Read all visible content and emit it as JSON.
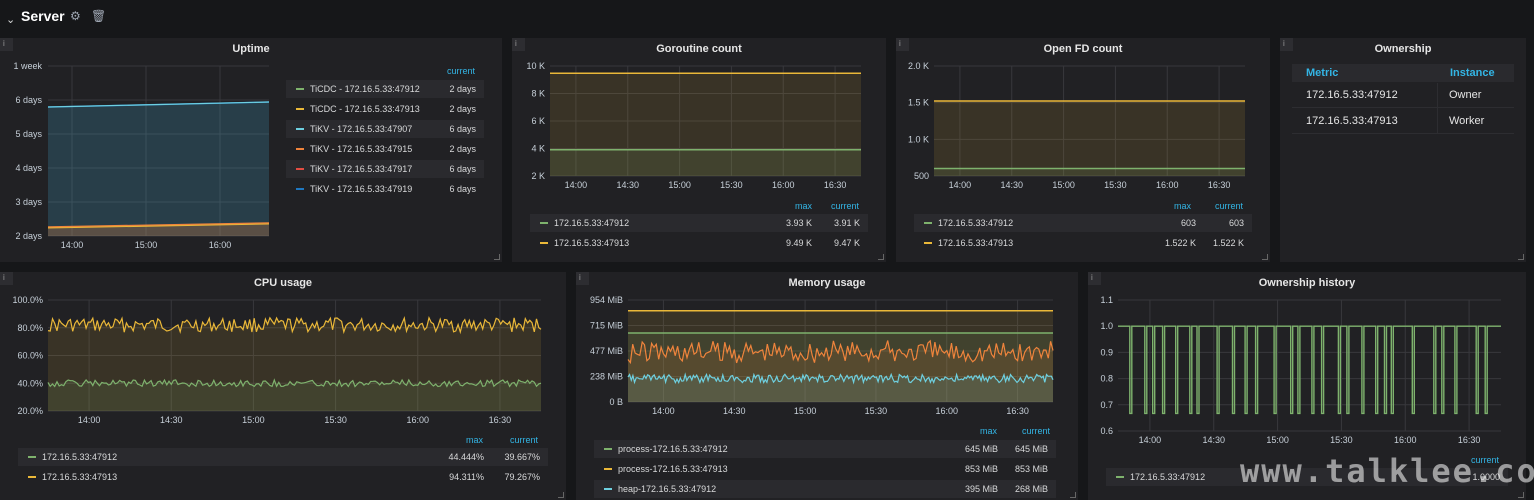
{
  "row": {
    "title": "Server"
  },
  "colors": {
    "green": "#7eb26d",
    "yellow": "#eab839",
    "blue": "#6ed0e0",
    "orange": "#ef843c",
    "red": "#e24d42",
    "darkblue": "#1f78c1",
    "link": "#33b5e5",
    "panel": "#212124"
  },
  "uptime": {
    "title": "Uptime",
    "yticks": [
      "1 week",
      "6 days",
      "5 days",
      "4 days",
      "3 days",
      "2 days"
    ],
    "xticks": [
      "14:00",
      "15:00",
      "16:00"
    ],
    "legend_header": "current",
    "legend": [
      {
        "name": "TiCDC - 172.16.5.33:47912",
        "value": "2 days",
        "color": "#7eb26d"
      },
      {
        "name": "TiCDC - 172.16.5.33:47913",
        "value": "2 days",
        "color": "#eab839"
      },
      {
        "name": "TiKV - 172.16.5.33:47907",
        "value": "6 days",
        "color": "#6ed0e0"
      },
      {
        "name": "TiKV - 172.16.5.33:47915",
        "value": "2 days",
        "color": "#ef843c"
      },
      {
        "name": "TiKV - 172.16.5.33:47917",
        "value": "6 days",
        "color": "#e24d42"
      },
      {
        "name": "TiKV - 172.16.5.33:47919",
        "value": "6 days",
        "color": "#1f78c1"
      }
    ]
  },
  "goroutine": {
    "title": "Goroutine count",
    "yticks": [
      "10 K",
      "8 K",
      "6 K",
      "4 K",
      "2 K"
    ],
    "xticks": [
      "14:00",
      "14:30",
      "15:00",
      "15:30",
      "16:00",
      "16:30"
    ],
    "legend_max": "max",
    "legend_current": "current",
    "legend": [
      {
        "name": "172.16.5.33:47912",
        "max": "3.93 K",
        "current": "3.91 K",
        "color": "#7eb26d"
      },
      {
        "name": "172.16.5.33:47913",
        "max": "9.49 K",
        "current": "9.47 K",
        "color": "#eab839"
      }
    ]
  },
  "openfd": {
    "title": "Open FD count",
    "yticks": [
      "2.0 K",
      "1.5 K",
      "1.0 K",
      "500"
    ],
    "xticks": [
      "14:00",
      "14:30",
      "15:00",
      "15:30",
      "16:00",
      "16:30"
    ],
    "legend_max": "max",
    "legend_current": "current",
    "legend": [
      {
        "name": "172.16.5.33:47912",
        "max": "603",
        "current": "603",
        "color": "#7eb26d"
      },
      {
        "name": "172.16.5.33:47913",
        "max": "1.522 K",
        "current": "1.522 K",
        "color": "#eab839"
      }
    ]
  },
  "ownership": {
    "title": "Ownership",
    "columns": [
      "Metric",
      "Instance"
    ],
    "rows": [
      {
        "metric": "172.16.5.33:47912",
        "instance": "Owner"
      },
      {
        "metric": "172.16.5.33:47913",
        "instance": "Worker"
      }
    ]
  },
  "cpu": {
    "title": "CPU usage",
    "yticks": [
      "100.0%",
      "80.0%",
      "60.0%",
      "40.0%",
      "20.0%"
    ],
    "xticks": [
      "14:00",
      "14:30",
      "15:00",
      "15:30",
      "16:00",
      "16:30"
    ],
    "legend_max": "max",
    "legend_current": "current",
    "legend": [
      {
        "name": "172.16.5.33:47912",
        "max": "44.444%",
        "current": "39.667%",
        "color": "#7eb26d"
      },
      {
        "name": "172.16.5.33:47913",
        "max": "94.311%",
        "current": "79.267%",
        "color": "#eab839"
      }
    ]
  },
  "memory": {
    "title": "Memory usage",
    "yticks": [
      "954 MiB",
      "715 MiB",
      "477 MiB",
      "238 MiB",
      "0 B"
    ],
    "xticks": [
      "14:00",
      "14:30",
      "15:00",
      "15:30",
      "16:00",
      "16:30"
    ],
    "legend_max": "max",
    "legend_current": "current",
    "legend": [
      {
        "name": "process-172.16.5.33:47912",
        "max": "645 MiB",
        "current": "645 MiB",
        "color": "#7eb26d"
      },
      {
        "name": "process-172.16.5.33:47913",
        "max": "853 MiB",
        "current": "853 MiB",
        "color": "#eab839"
      },
      {
        "name": "heap-172.16.5.33:47912",
        "max": "395 MiB",
        "current": "268 MiB",
        "color": "#6ed0e0"
      }
    ]
  },
  "history": {
    "title": "Ownership history",
    "yticks": [
      "1.1",
      "1.0",
      "0.9",
      "0.8",
      "0.7",
      "0.6"
    ],
    "xticks": [
      "14:00",
      "14:30",
      "15:00",
      "15:30",
      "16:00",
      "16:30"
    ],
    "legend_current": "current",
    "legend": [
      {
        "name": "172.16.5.33:47912",
        "current": "1.0000",
        "color": "#7eb26d"
      }
    ]
  },
  "watermark": "www.talklee.com"
}
